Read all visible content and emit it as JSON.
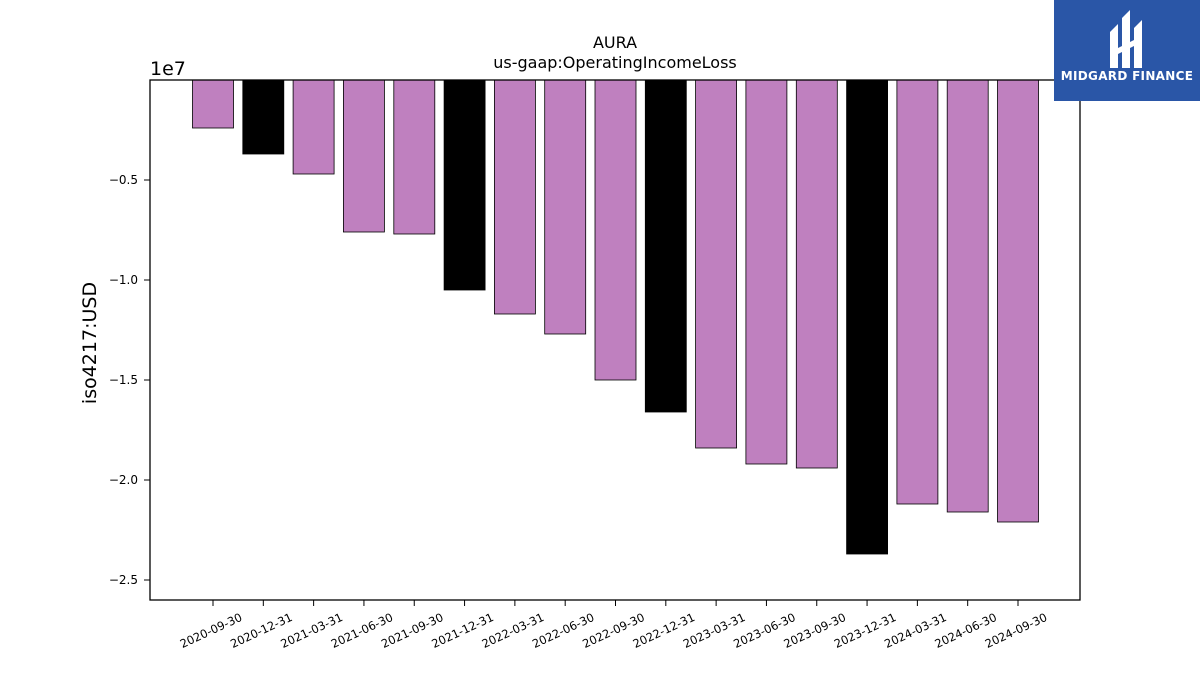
{
  "chart_data": {
    "type": "bar",
    "title": "AURA",
    "subtitle": "us-gaap:OperatingIncomeLoss",
    "ylabel": "iso4217:USD",
    "xlabel": "",
    "y_multiplier_label": "1e7",
    "y_multiplier": 10000000,
    "ylim": [
      -26000000,
      0
    ],
    "y_ticks": [
      -5000000,
      -10000000,
      -15000000,
      -20000000,
      -25000000
    ],
    "y_tick_labels": [
      "−0.5",
      "−1.0",
      "−1.5",
      "−2.0",
      "−2.5"
    ],
    "categories": [
      "2020-09-30",
      "2020-12-31",
      "2021-03-31",
      "2021-06-30",
      "2021-09-30",
      "2021-12-31",
      "2022-03-31",
      "2022-06-30",
      "2022-09-30",
      "2022-12-31",
      "2023-03-31",
      "2023-06-30",
      "2023-09-30",
      "2023-12-31",
      "2024-03-31",
      "2024-06-30",
      "2024-09-30"
    ],
    "values": [
      -2400000,
      -3700000,
      -4700000,
      -7600000,
      -7700000,
      -10500000,
      -11700000,
      -12700000,
      -15000000,
      -16600000,
      -18400000,
      -19200000,
      -19400000,
      -23700000,
      -21200000,
      -21600000,
      -22100000
    ],
    "bar_colors": [
      "#bf80bf",
      "#000000",
      "#bf80bf",
      "#bf80bf",
      "#bf80bf",
      "#000000",
      "#bf80bf",
      "#bf80bf",
      "#bf80bf",
      "#000000",
      "#bf80bf",
      "#bf80bf",
      "#bf80bf",
      "#000000",
      "#bf80bf",
      "#bf80bf",
      "#bf80bf"
    ],
    "grid": false
  },
  "logo": {
    "text": "MIDGARD FINANCE",
    "background": "#2a56a7"
  }
}
